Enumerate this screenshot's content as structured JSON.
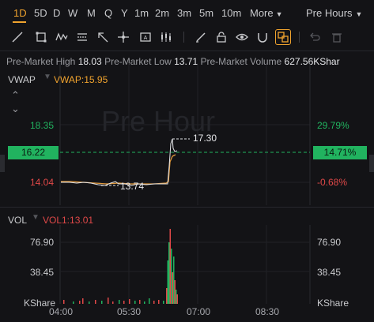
{
  "timeframes": [
    "1D",
    "5D",
    "D",
    "W",
    "M",
    "Q",
    "Y",
    "1m",
    "2m",
    "3m",
    "5m",
    "10m"
  ],
  "active_timeframe": "1D",
  "more_label": "More",
  "session_label": "Pre Hours",
  "stats": {
    "high_label": "Pre-Market High",
    "high_value": "18.03",
    "low_label": "Pre-Market Low",
    "low_value": "13.71",
    "volume_label": "Pre-Market Volume",
    "volume_value": "627.56KShar"
  },
  "main_panel": {
    "indicator": "VWAP",
    "indicator_value": "VWAP:15.95",
    "watermark": "Pre Hour",
    "left_axis": [
      "18.35",
      "16.22",
      "14.04"
    ],
    "right_axis": [
      "29.79%",
      "14.71%",
      "-0.68%"
    ],
    "high_marker": "17.30",
    "low_marker": "13.74"
  },
  "volume_panel": {
    "indicator": "VOL",
    "indicator_value": "VOL1:13.01",
    "left_axis": [
      "76.90",
      "38.45",
      "KShare"
    ],
    "right_axis": [
      "76.90",
      "38.45",
      "KShare"
    ]
  },
  "x_axis": [
    "04:00",
    "05:30",
    "07:00",
    "08:30"
  ],
  "colors": {
    "accent": "#f0a32e",
    "up": "#21b35f",
    "down": "#e04848",
    "vwap": "#e39a3c",
    "price_line": "#e6e7ea"
  },
  "icons": [
    "trend-line-icon",
    "rectangle-icon",
    "wave-icon",
    "text-icon",
    "arrow-icon",
    "channel-icon",
    "measure-icon",
    "annotation-icon",
    "indicator-icon",
    "pen-icon",
    "lock-icon",
    "eye-icon",
    "magnet-icon",
    "sync-icon",
    "undo-icon",
    "trash-icon"
  ]
}
